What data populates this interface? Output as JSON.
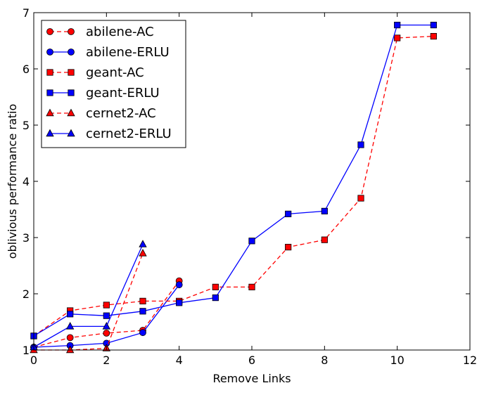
{
  "chart_data": {
    "type": "line",
    "title": "",
    "xlabel": "Remove Links",
    "ylabel": "oblivious performance ratio",
    "xlim": [
      0,
      12
    ],
    "ylim": [
      1,
      7
    ],
    "xticks": [
      0,
      2,
      4,
      6,
      8,
      10,
      12
    ],
    "yticks": [
      1,
      2,
      3,
      4,
      5,
      6,
      7
    ],
    "grid": false,
    "legend": "top-left",
    "series": [
      {
        "name": "abilene-AC",
        "color": "#ff0000",
        "marker": "circle",
        "linestyle": "dashed",
        "x": [
          0,
          1,
          2,
          3,
          4
        ],
        "y": [
          1.05,
          1.22,
          1.3,
          1.35,
          2.23
        ]
      },
      {
        "name": "abilene-ERLU",
        "color": "#0000ff",
        "marker": "circle",
        "linestyle": "solid",
        "x": [
          0,
          1,
          2,
          3,
          4
        ],
        "y": [
          1.05,
          1.08,
          1.12,
          1.31,
          2.16
        ]
      },
      {
        "name": "geant-AC",
        "color": "#ff0000",
        "marker": "square",
        "linestyle": "dashed",
        "x": [
          0,
          1,
          2,
          3,
          4,
          5,
          6,
          7,
          8,
          9,
          10,
          11
        ],
        "y": [
          1.25,
          1.7,
          1.8,
          1.87,
          1.87,
          2.12,
          2.12,
          2.83,
          2.96,
          3.7,
          6.55,
          6.58
        ]
      },
      {
        "name": "geant-ERLU",
        "color": "#0000ff",
        "marker": "square",
        "linestyle": "solid",
        "x": [
          0,
          1,
          2,
          3,
          4,
          5,
          6,
          7,
          8,
          9,
          10,
          11
        ],
        "y": [
          1.25,
          1.64,
          1.61,
          1.69,
          1.84,
          1.93,
          2.94,
          3.42,
          3.47,
          4.65,
          6.78,
          6.78
        ]
      },
      {
        "name": "cernet2-AC",
        "color": "#ff0000",
        "marker": "triangle",
        "linestyle": "dashed",
        "x": [
          0,
          1,
          2,
          3
        ],
        "y": [
          1.0,
          1.0,
          1.03,
          2.72
        ]
      },
      {
        "name": "cernet2-ERLU",
        "color": "#0000ff",
        "marker": "triangle",
        "linestyle": "solid",
        "x": [
          0,
          1,
          2,
          3
        ],
        "y": [
          1.05,
          1.42,
          1.42,
          2.88
        ]
      }
    ]
  }
}
